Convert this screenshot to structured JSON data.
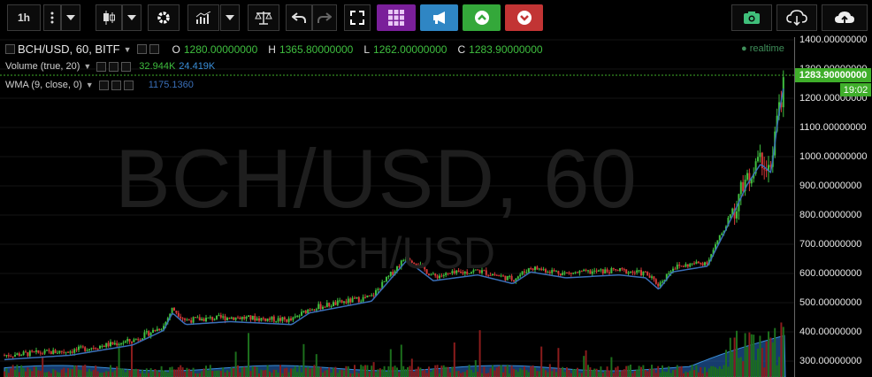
{
  "toolbar": {
    "interval_label": "1h",
    "colors": {
      "purple": "#7a1f9a",
      "blue": "#2f86c4",
      "green": "#34a83a",
      "red": "#c23434"
    }
  },
  "legend": {
    "symbol": "BCH/USD, 60, BITF",
    "ohlc": {
      "o_label": "O",
      "o_value": "1280.00000000",
      "h_label": "H",
      "h_value": "1365.80000000",
      "l_label": "L",
      "l_value": "1262.00000000",
      "c_label": "C",
      "c_value": "1283.90000000"
    },
    "volume": {
      "label": "Volume (true, 20)",
      "value1": "32.944K",
      "value2": "24.419K"
    },
    "wma": {
      "label": "WMA (9, close, 0)",
      "value": "1175.1360"
    }
  },
  "watermark": {
    "main": "BCH/USD, 60",
    "sub": "BCH/USD"
  },
  "price_axis": {
    "ticks": [
      "1400.00000000",
      "1300.00000000",
      "1200.00000000",
      "1100.00000000",
      "1000.00000000",
      "900.00000000",
      "800.00000000",
      "700.00000000",
      "600.00000000",
      "500.00000000",
      "400.00000000",
      "300.00000000"
    ],
    "last_price": "1283.90000000",
    "countdown": "19:02"
  },
  "status": {
    "realtime_label": "realtime"
  }
}
